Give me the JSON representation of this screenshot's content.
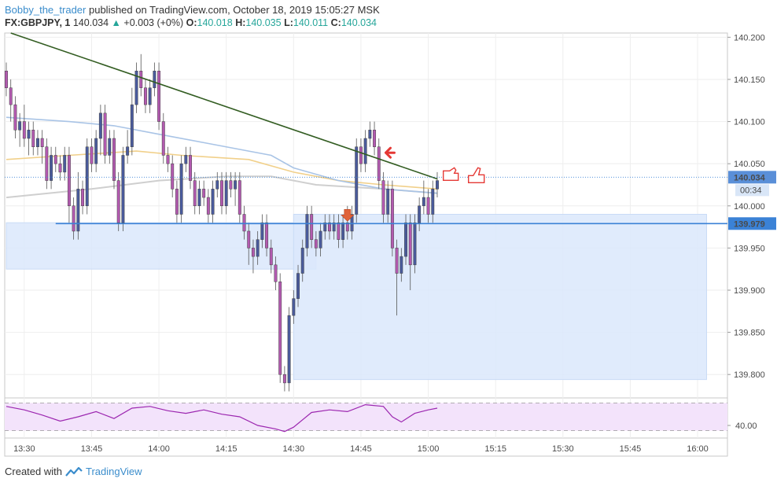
{
  "header": {
    "author": "Bobby_the_trader",
    "published": "published on TradingView.com, October 18, 2019 15:05:27 MSK",
    "symbol": "FX:GBPJPY, 1",
    "last": "140.034",
    "change": "+0.003 (+0%)",
    "o_label": "O:",
    "o_value": "140.018",
    "h_label": "H:",
    "h_value": "140.035",
    "l_label": "L:",
    "l_value": "140.011",
    "c_label": "C:",
    "c_value": "140.034"
  },
  "footer": {
    "created_with": "Created with",
    "brand": "TradingView"
  },
  "colors": {
    "bull": "#4a5b9c",
    "bear": "#b35ab0",
    "trendline": "#335d22",
    "level": "#3b82d6",
    "zone": "#dbe8fb",
    "ma_blue": "#a9c4e6",
    "ma_yellow": "#f1d08a",
    "ma_gray": "#cfcfcf",
    "rsi": "#9c27b0",
    "rsi_band": "#f3e3fb",
    "price_tag": "#3b82d6",
    "arrow": "#e53935"
  },
  "chart_data": {
    "type": "candlestick",
    "y_range": [
      139.775,
      140.205
    ],
    "y_ticks": [
      "140.200",
      "140.150",
      "140.100",
      "140.050",
      "140.000",
      "139.950",
      "139.900",
      "139.850",
      "139.800"
    ],
    "y_tick_values": [
      140.2,
      140.15,
      140.1,
      140.05,
      140.0,
      139.95,
      139.9,
      139.85,
      139.8
    ],
    "x_ticks": [
      "13:30",
      "13:45",
      "14:00",
      "14:15",
      "14:30",
      "14:45",
      "15:00",
      "15:15",
      "15:30",
      "15:45",
      "16:00"
    ],
    "x_tick_minutes": [
      30,
      45,
      60,
      75,
      90,
      105,
      120,
      135,
      150,
      165,
      180
    ],
    "x_range_minutes": [
      26,
      187
    ],
    "level": 139.979,
    "level_label": "139.979",
    "current_price_label": "140.034",
    "countdown_label": "00:34",
    "current_price": 140.034,
    "rsi_label": "40.00",
    "rsi_range": [
      30,
      70
    ],
    "rsi_level": 40,
    "rsi_bands": [
      34,
      66
    ],
    "candles": [
      [
        26,
        140.16,
        140.14,
        140.17,
        140.13
      ],
      [
        27,
        140.14,
        140.12,
        140.15,
        140.1
      ],
      [
        28,
        140.12,
        140.09,
        140.13,
        140.08
      ],
      [
        29,
        140.09,
        140.1,
        140.11,
        140.07
      ],
      [
        30,
        140.1,
        140.08,
        140.12,
        140.07
      ],
      [
        31,
        140.08,
        140.09,
        140.1,
        140.06
      ],
      [
        32,
        140.09,
        140.07,
        140.1,
        140.06
      ],
      [
        33,
        140.07,
        140.08,
        140.09,
        140.06
      ],
      [
        34,
        140.08,
        140.07,
        140.09,
        140.05
      ],
      [
        35,
        140.07,
        140.03,
        140.08,
        140.02
      ],
      [
        36,
        140.03,
        140.06,
        140.07,
        140.02
      ],
      [
        37,
        140.06,
        140.05,
        140.07,
        140.04
      ],
      [
        38,
        140.05,
        140.04,
        140.06,
        140.03
      ],
      [
        39,
        140.04,
        140.06,
        140.07,
        140.03
      ],
      [
        40,
        140.06,
        140.0,
        140.07,
        139.98
      ],
      [
        41,
        140.0,
        139.97,
        140.01,
        139.96
      ],
      [
        42,
        139.97,
        140.02,
        140.04,
        139.96
      ],
      [
        43,
        140.02,
        140.0,
        140.03,
        139.99
      ],
      [
        44,
        140.0,
        140.07,
        140.08,
        139.99
      ],
      [
        45,
        140.07,
        140.05,
        140.08,
        140.04
      ],
      [
        46,
        140.05,
        140.08,
        140.09,
        140.04
      ],
      [
        47,
        140.08,
        140.11,
        140.12,
        140.06
      ],
      [
        48,
        140.11,
        140.06,
        140.12,
        140.05
      ],
      [
        49,
        140.06,
        140.08,
        140.09,
        140.05
      ],
      [
        50,
        140.08,
        140.03,
        140.09,
        140.02
      ],
      [
        51,
        140.03,
        139.98,
        140.04,
        139.97
      ],
      [
        52,
        139.98,
        140.06,
        140.07,
        139.97
      ],
      [
        53,
        140.06,
        140.07,
        140.09,
        140.05
      ],
      [
        54,
        140.07,
        140.12,
        140.14,
        140.06
      ],
      [
        55,
        140.12,
        140.16,
        140.17,
        140.11
      ],
      [
        56,
        140.16,
        140.14,
        140.18,
        140.13
      ],
      [
        57,
        140.14,
        140.12,
        140.15,
        140.11
      ],
      [
        58,
        140.12,
        140.14,
        140.15,
        140.11
      ],
      [
        59,
        140.14,
        140.16,
        140.17,
        140.13
      ],
      [
        60,
        140.16,
        140.1,
        140.17,
        140.09
      ],
      [
        61,
        140.1,
        140.06,
        140.11,
        140.05
      ],
      [
        62,
        140.06,
        140.05,
        140.07,
        140.04
      ],
      [
        63,
        140.05,
        140.02,
        140.06,
        140.01
      ],
      [
        64,
        140.02,
        139.99,
        140.03,
        139.98
      ],
      [
        65,
        139.99,
        140.05,
        140.06,
        139.98
      ],
      [
        66,
        140.05,
        140.06,
        140.07,
        140.04
      ],
      [
        67,
        140.06,
        140.03,
        140.07,
        140.02
      ],
      [
        68,
        140.03,
        140.0,
        140.04,
        139.99
      ],
      [
        69,
        140.0,
        140.02,
        140.03,
        139.99
      ],
      [
        70,
        140.02,
        140.01,
        140.03,
        140.0
      ],
      [
        71,
        140.01,
        139.99,
        140.02,
        139.98
      ],
      [
        72,
        139.99,
        140.02,
        140.03,
        139.98
      ],
      [
        73,
        140.02,
        140.03,
        140.04,
        140.01
      ],
      [
        74,
        140.03,
        140.0,
        140.04,
        139.99
      ],
      [
        75,
        140.0,
        140.03,
        140.04,
        139.99
      ],
      [
        76,
        140.03,
        140.02,
        140.04,
        140.01
      ],
      [
        77,
        140.02,
        140.03,
        140.04,
        140.0
      ],
      [
        78,
        140.03,
        139.99,
        140.04,
        139.98
      ],
      [
        79,
        139.99,
        139.97,
        140.0,
        139.96
      ],
      [
        80,
        139.97,
        139.95,
        139.98,
        139.93
      ],
      [
        81,
        139.95,
        139.94,
        139.96,
        139.92
      ],
      [
        82,
        139.94,
        139.96,
        139.97,
        139.93
      ],
      [
        83,
        139.96,
        139.98,
        139.99,
        139.95
      ],
      [
        84,
        139.98,
        139.95,
        139.99,
        139.94
      ],
      [
        85,
        139.95,
        139.93,
        139.96,
        139.92
      ],
      [
        86,
        139.93,
        139.91,
        139.94,
        139.9
      ],
      [
        87,
        139.91,
        139.8,
        139.92,
        139.79
      ],
      [
        88,
        139.8,
        139.79,
        139.81,
        139.78
      ],
      [
        89,
        139.79,
        139.87,
        139.88,
        139.78
      ],
      [
        90,
        139.87,
        139.89,
        139.9,
        139.86
      ],
      [
        91,
        139.89,
        139.92,
        139.93,
        139.88
      ],
      [
        92,
        139.92,
        139.95,
        139.96,
        139.91
      ],
      [
        93,
        139.95,
        139.99,
        140.0,
        139.94
      ],
      [
        94,
        139.99,
        139.96,
        140.0,
        139.95
      ],
      [
        95,
        139.96,
        139.95,
        139.97,
        139.94
      ],
      [
        96,
        139.95,
        139.97,
        139.98,
        139.94
      ],
      [
        97,
        139.97,
        139.98,
        139.99,
        139.96
      ],
      [
        98,
        139.98,
        139.97,
        139.99,
        139.96
      ],
      [
        99,
        139.97,
        139.98,
        139.99,
        139.96
      ],
      [
        100,
        139.98,
        139.96,
        139.99,
        139.95
      ],
      [
        101,
        139.96,
        139.98,
        139.99,
        139.95
      ],
      [
        102,
        139.98,
        139.97,
        140.0,
        139.96
      ],
      [
        103,
        139.97,
        139.99,
        140.0,
        139.96
      ],
      [
        104,
        139.99,
        140.07,
        140.08,
        139.98
      ],
      [
        105,
        140.07,
        140.05,
        140.08,
        140.04
      ],
      [
        106,
        140.05,
        140.08,
        140.09,
        140.04
      ],
      [
        107,
        140.08,
        140.09,
        140.1,
        140.07
      ],
      [
        108,
        140.09,
        140.07,
        140.1,
        140.06
      ],
      [
        109,
        140.07,
        140.03,
        140.08,
        140.02
      ],
      [
        110,
        140.03,
        139.99,
        140.04,
        139.98
      ],
      [
        111,
        139.99,
        140.02,
        140.03,
        139.98
      ],
      [
        112,
        140.02,
        139.95,
        140.03,
        139.94
      ],
      [
        113,
        139.95,
        139.92,
        139.96,
        139.87
      ],
      [
        114,
        139.92,
        139.94,
        139.95,
        139.91
      ],
      [
        115,
        139.94,
        139.98,
        139.99,
        139.93
      ],
      [
        116,
        139.98,
        139.93,
        139.99,
        139.9
      ],
      [
        117,
        139.93,
        139.98,
        139.99,
        139.92
      ],
      [
        118,
        139.98,
        140.0,
        140.01,
        139.97
      ],
      [
        119,
        140.0,
        140.01,
        140.03,
        139.99
      ],
      [
        120,
        140.01,
        139.99,
        140.02,
        139.98
      ],
      [
        121,
        139.99,
        140.02,
        140.03,
        139.98
      ],
      [
        122,
        140.02,
        140.03,
        140.04,
        140.01
      ]
    ],
    "ma_blue": [
      [
        26,
        140.105
      ],
      [
        40,
        140.1
      ],
      [
        50,
        140.095
      ],
      [
        60,
        140.085
      ],
      [
        70,
        140.075
      ],
      [
        80,
        140.065
      ],
      [
        85,
        140.06
      ],
      [
        90,
        140.045
      ],
      [
        100,
        140.03
      ],
      [
        110,
        140.02
      ],
      [
        122,
        140.015
      ]
    ],
    "ma_yellow": [
      [
        26,
        140.055
      ],
      [
        40,
        140.06
      ],
      [
        55,
        140.065
      ],
      [
        65,
        140.06
      ],
      [
        80,
        140.055
      ],
      [
        90,
        140.04
      ],
      [
        100,
        140.03
      ],
      [
        110,
        140.025
      ],
      [
        122,
        140.02
      ]
    ],
    "ma_gray": [
      [
        26,
        140.01
      ],
      [
        45,
        140.02
      ],
      [
        60,
        140.03
      ],
      [
        75,
        140.035
      ],
      [
        85,
        140.035
      ],
      [
        95,
        140.025
      ],
      [
        110,
        140.02
      ],
      [
        122,
        140.015
      ]
    ],
    "trendline": [
      [
        27,
        140.205
      ],
      [
        122,
        140.032
      ]
    ],
    "zones": [
      {
        "x": [
          26,
          95
        ],
        "y": [
          139.925,
          139.98
        ]
      },
      {
        "x": [
          90,
          182
        ],
        "y": [
          139.794,
          139.99
        ]
      }
    ],
    "rsi": [
      [
        26,
        62
      ],
      [
        30,
        58
      ],
      [
        34,
        52
      ],
      [
        38,
        45
      ],
      [
        42,
        50
      ],
      [
        46,
        56
      ],
      [
        50,
        48
      ],
      [
        54,
        60
      ],
      [
        58,
        62
      ],
      [
        62,
        57
      ],
      [
        66,
        54
      ],
      [
        70,
        58
      ],
      [
        74,
        53
      ],
      [
        78,
        50
      ],
      [
        82,
        40
      ],
      [
        86,
        36
      ],
      [
        88,
        33
      ],
      [
        90,
        38
      ],
      [
        94,
        55
      ],
      [
        98,
        58
      ],
      [
        102,
        56
      ],
      [
        106,
        64
      ],
      [
        110,
        62
      ],
      [
        112,
        50
      ],
      [
        114,
        44
      ],
      [
        117,
        54
      ],
      [
        120,
        58
      ],
      [
        122,
        60
      ]
    ]
  }
}
